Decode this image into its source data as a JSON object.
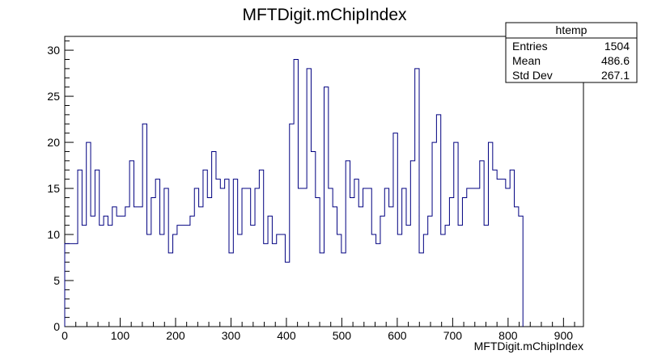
{
  "chart_data": {
    "type": "histogram",
    "title": "MFTDigit.mChipIndex",
    "xlabel": "MFTDigit.mChipIndex",
    "ylabel": "",
    "xlim": [
      0,
      936
    ],
    "ylim": [
      0,
      31.5
    ],
    "bin_width": 7.8,
    "x_ticks": [
      0,
      100,
      200,
      300,
      400,
      500,
      600,
      700,
      800,
      900
    ],
    "y_ticks": [
      0,
      5,
      10,
      15,
      20,
      25,
      30
    ],
    "line_color": "#000080",
    "bin_counts": [
      9,
      9,
      9,
      17,
      11,
      20,
      12,
      17,
      11,
      12,
      11,
      13,
      12,
      12,
      13,
      18,
      13,
      13,
      22,
      10,
      14,
      16,
      10,
      15,
      8,
      10,
      11,
      11,
      11,
      12,
      15,
      13,
      17,
      14,
      19,
      16,
      15,
      16,
      8,
      16,
      10,
      15,
      15,
      11,
      15,
      17,
      9,
      12,
      9,
      10,
      10,
      7,
      22,
      29,
      15,
      15,
      28,
      19,
      14,
      8,
      26,
      15,
      13,
      10,
      8,
      18,
      14,
      16,
      13,
      15,
      15,
      10,
      9,
      12,
      15,
      13,
      21,
      10,
      15,
      11,
      18,
      28,
      8,
      10,
      12,
      20,
      23,
      10,
      11,
      14,
      20,
      11,
      14,
      15,
      15,
      15,
      18,
      11,
      20,
      17,
      16,
      16,
      15,
      17,
      13,
      12
    ],
    "stats_box": {
      "title": "htemp",
      "rows": [
        {
          "label": "Entries",
          "value": "1504"
        },
        {
          "label": "Mean",
          "value": "486.6"
        },
        {
          "label": "Std Dev",
          "value": "267.1"
        }
      ]
    }
  }
}
